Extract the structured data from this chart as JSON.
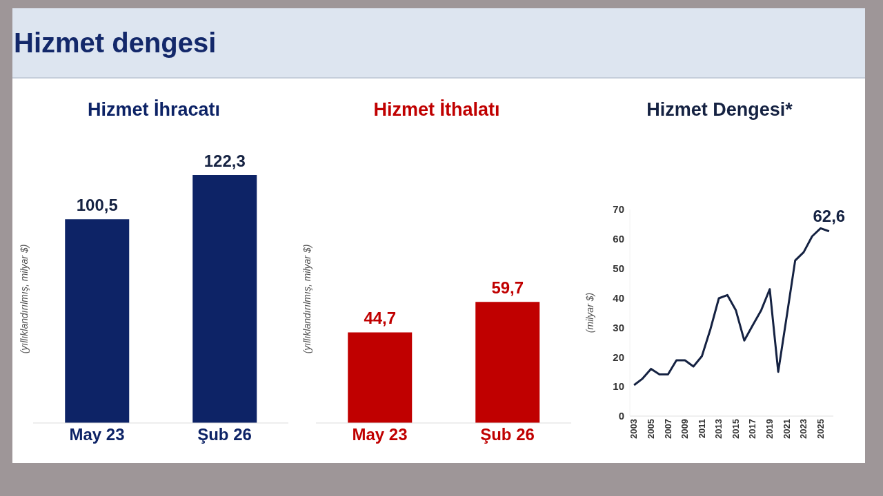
{
  "chart_data": [
    {
      "type": "other",
      "title": "Hizmet dengesi"
    },
    {
      "type": "bar",
      "title": "Hizmet İhracatı",
      "ylabel": "(yıllıklandırılmış, milyar $)",
      "categories": [
        "May 23",
        "Şub 26"
      ],
      "values": [
        100.5,
        122.3
      ],
      "value_labels": [
        "100,5",
        "122,3"
      ],
      "color": "#0d2366"
    },
    {
      "type": "bar",
      "title": "Hizmet İthalatı",
      "ylabel": "(yıllıklandırılmış, milyar $)",
      "categories": [
        "May 23",
        "Şub 26"
      ],
      "values": [
        44.7,
        59.7
      ],
      "value_labels": [
        "44,7",
        "59,7"
      ],
      "color": "#c00000"
    },
    {
      "type": "line",
      "title": "Hizmet Dengesi*",
      "ylabel": "(milyar $)",
      "color": "#152242",
      "marker": "none",
      "x": [
        2003,
        2004,
        2005,
        2006,
        2007,
        2008,
        2009,
        2010,
        2011,
        2012,
        2013,
        2014,
        2015,
        2016,
        2017,
        2018,
        2019,
        2020,
        2021,
        2022,
        2023,
        2024,
        2025,
        2026
      ],
      "values": [
        10.5,
        12.7,
        16.0,
        14.1,
        14.1,
        18.9,
        18.9,
        16.8,
        20.3,
        29.4,
        39.9,
        41.0,
        35.9,
        25.6,
        30.8,
        35.9,
        43.0,
        15.0,
        33.7,
        52.7,
        55.5,
        60.9,
        63.6,
        62.6
      ],
      "xlim": [
        2002.5,
        2026.5
      ],
      "xticks": [
        2003,
        2005,
        2007,
        2009,
        2011,
        2013,
        2015,
        2017,
        2019,
        2021,
        2023,
        2025
      ],
      "ylim": [
        0,
        70
      ],
      "yticks": [
        0,
        10,
        20,
        30,
        40,
        50,
        60,
        70
      ],
      "annotations": [
        {
          "text": "62,6",
          "x": 2026,
          "y": 62.6
        }
      ]
    }
  ]
}
